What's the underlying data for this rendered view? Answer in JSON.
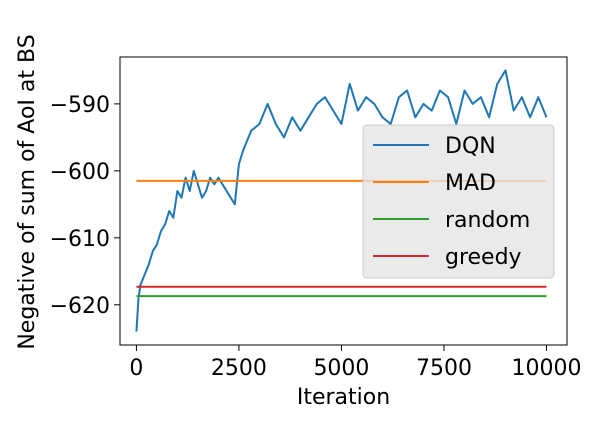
{
  "chart_data": {
    "type": "line",
    "title": "",
    "xlabel": "Iteration",
    "ylabel": "Negative of sum of AoI at BS",
    "xlim": [
      -400,
      10500
    ],
    "ylim": [
      -626,
      -583
    ],
    "xticks": [
      0,
      2500,
      5000,
      7500,
      10000
    ],
    "xtick_labels": [
      "0",
      "2500",
      "5000",
      "7500",
      "10000"
    ],
    "yticks": [
      -620,
      -610,
      -600,
      -590
    ],
    "ytick_labels": [
      "−620",
      "−610",
      "−600",
      "−590"
    ],
    "grid": false,
    "legend_position": "center-right",
    "series": [
      {
        "name": "DQN",
        "color": "#1f77b4",
        "x": [
          0,
          50,
          100,
          200,
          300,
          400,
          500,
          600,
          700,
          800,
          900,
          1000,
          1100,
          1200,
          1300,
          1400,
          1500,
          1600,
          1700,
          1800,
          1900,
          2000,
          2100,
          2200,
          2300,
          2400,
          2500,
          2600,
          2800,
          3000,
          3200,
          3400,
          3600,
          3800,
          4000,
          4200,
          4400,
          4600,
          4800,
          5000,
          5200,
          5400,
          5600,
          5800,
          6000,
          6200,
          6400,
          6600,
          6800,
          7000,
          7200,
          7400,
          7600,
          7800,
          8000,
          8200,
          8400,
          8600,
          8800,
          9000,
          9200,
          9400,
          9600,
          9800,
          10000
        ],
        "y": [
          -624,
          -619,
          -617,
          -615.5,
          -614,
          -612,
          -611,
          -609,
          -608,
          -606,
          -607,
          -603,
          -604,
          -601,
          -603,
          -600,
          -602,
          -604,
          -603,
          -601,
          -602,
          -601,
          -602,
          -603,
          -604,
          -605,
          -599,
          -597,
          -594,
          -593,
          -590,
          -593,
          -595,
          -592,
          -594,
          -592,
          -590,
          -589,
          -591,
          -593,
          -587,
          -591,
          -589,
          -590,
          -592,
          -593,
          -589,
          -588,
          -592,
          -590,
          -591,
          -588,
          -589,
          -593,
          -588,
          -590,
          -589,
          -592,
          -587,
          -585,
          -591,
          -589,
          -592,
          -589,
          -592
        ]
      },
      {
        "name": "MAD",
        "color": "#ff7f0e",
        "x": [
          0,
          10000
        ],
        "y": [
          -601.5,
          -601.5
        ]
      },
      {
        "name": "random",
        "color": "#2ca02c",
        "x": [
          0,
          10000
        ],
        "y": [
          -618.7,
          -618.7
        ]
      },
      {
        "name": "greedy",
        "color": "#d62728",
        "x": [
          0,
          10000
        ],
        "y": [
          -617.3,
          -617.3
        ]
      }
    ]
  }
}
